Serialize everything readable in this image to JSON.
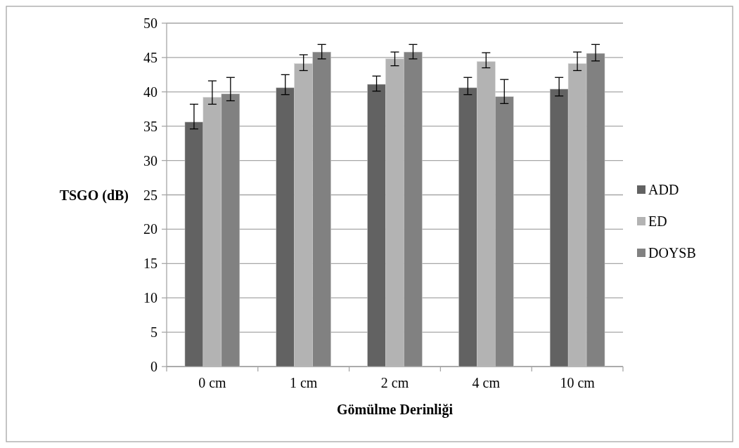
{
  "chart_data": {
    "type": "bar",
    "xlabel": "Gömülme Derinliği",
    "ylabel": "TSGO (dB)",
    "categories": [
      "0 cm",
      "1 cm",
      "2 cm",
      "4 cm",
      "10 cm"
    ],
    "series": [
      {
        "name": "ADD",
        "color": "#626262",
        "values": [
          35.6,
          40.6,
          41.1,
          40.6,
          40.4
        ],
        "errors": [
          [
            34.6,
            38.2
          ],
          [
            39.6,
            42.5
          ],
          [
            40.1,
            42.3
          ],
          [
            39.6,
            42.1
          ],
          [
            39.4,
            42.1
          ]
        ]
      },
      {
        "name": "ED",
        "color": "#b3b3b3",
        "values": [
          39.2,
          44.1,
          44.8,
          44.4,
          44.1
        ],
        "errors": [
          [
            38.2,
            41.6
          ],
          [
            43.1,
            45.4
          ],
          [
            43.8,
            45.8
          ],
          [
            43.5,
            45.7
          ],
          [
            43.1,
            45.8
          ]
        ]
      },
      {
        "name": "DOYSB",
        "color": "#818181",
        "values": [
          39.7,
          45.8,
          45.8,
          39.3,
          45.6
        ],
        "errors": [
          [
            38.7,
            42.1
          ],
          [
            44.8,
            46.9
          ],
          [
            44.8,
            46.9
          ],
          [
            38.3,
            41.8
          ],
          [
            44.5,
            46.9
          ]
        ]
      }
    ],
    "ylim": [
      0,
      50
    ],
    "yticks": [
      0,
      5,
      10,
      15,
      20,
      25,
      30,
      35,
      40,
      45,
      50
    ],
    "grid": "y",
    "legend": "right"
  }
}
